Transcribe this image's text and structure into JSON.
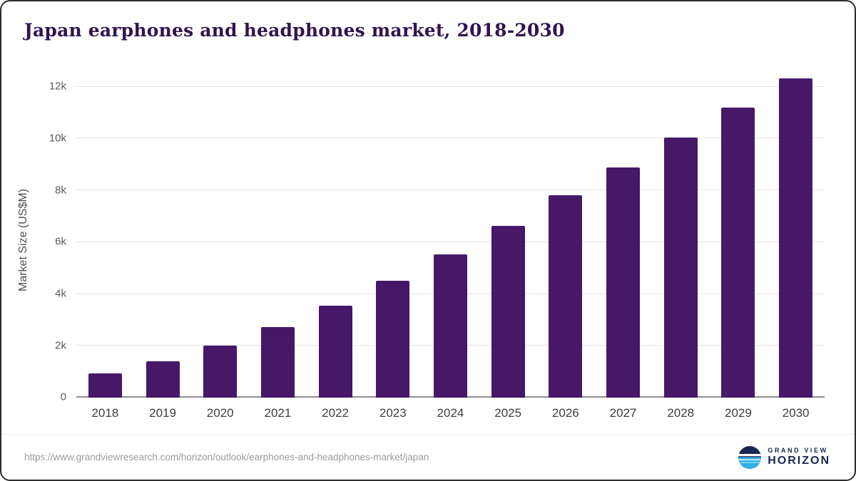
{
  "chart_data": {
    "type": "bar",
    "title": "Japan earphones and headphones market, 2018-2030",
    "categories": [
      "2018",
      "2019",
      "2020",
      "2021",
      "2022",
      "2023",
      "2024",
      "2025",
      "2026",
      "2027",
      "2028",
      "2029",
      "2030"
    ],
    "values": [
      930,
      1400,
      2000,
      2720,
      3560,
      4510,
      5530,
      6630,
      7800,
      8890,
      10030,
      11190,
      12320
    ],
    "xlabel": "",
    "ylabel": "Market Size (US$M)",
    "ylim": [
      0,
      12400
    ],
    "y_ticks": [
      {
        "value": 0,
        "label": "0"
      },
      {
        "value": 2000,
        "label": "2k"
      },
      {
        "value": 4000,
        "label": "4k"
      },
      {
        "value": 6000,
        "label": "6k"
      },
      {
        "value": 8000,
        "label": "8k"
      },
      {
        "value": 10000,
        "label": "10k"
      },
      {
        "value": 12000,
        "label": "12k"
      }
    ],
    "grid": true,
    "legend": false,
    "bar_color": "#471768"
  },
  "colors": {
    "bar": "#471768",
    "title": "#321450",
    "logo_navy": "#1b2653",
    "logo_blue": "#33b1e4"
  },
  "footer": {
    "source_url": "https://www.grandviewresearch.com/horizon/outlook/earphones-and-headphones-market/japan",
    "logo": {
      "top": "GRAND VIEW",
      "bottom": "HORIZON"
    }
  }
}
